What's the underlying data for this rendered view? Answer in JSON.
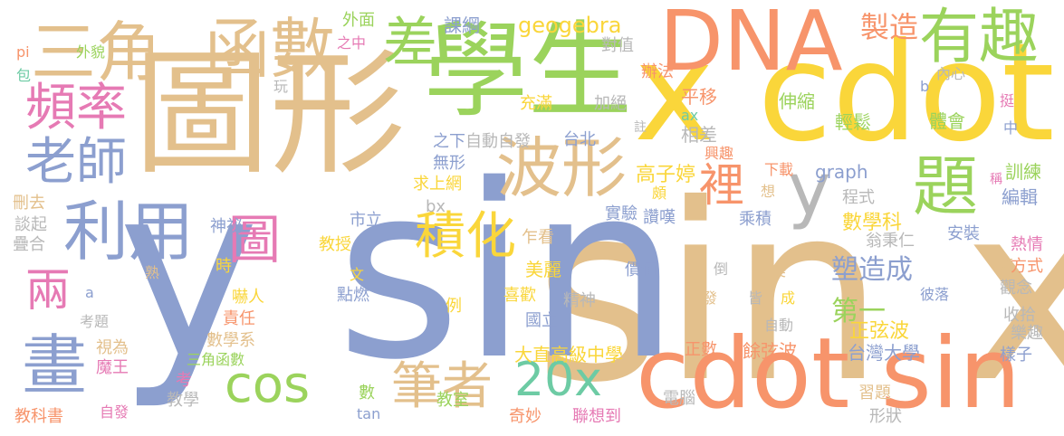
{
  "palette": {
    "tan": "#e3c08c",
    "orange": "#f7946b",
    "yellow": "#fad63a",
    "green": "#9bd35c",
    "blue": "#8c9fcf",
    "pink": "#e67ab4",
    "gray": "#b8b8b8",
    "teal": "#6dcba4"
  },
  "words": [
    {
      "text": "sin x"
    },
    {
      "text": "y sin"
    },
    {
      "text": "圖形"
    },
    {
      "text": "學生"
    },
    {
      "text": "x cdot"
    },
    {
      "text": "cdot sin"
    },
    {
      "text": "DNA"
    },
    {
      "text": "三角"
    },
    {
      "text": "函數"
    },
    {
      "text": "有趣"
    },
    {
      "text": "差"
    },
    {
      "text": "題"
    },
    {
      "text": "波形"
    },
    {
      "text": "頻率"
    },
    {
      "text": "老師"
    },
    {
      "text": "利用"
    },
    {
      "text": "畫"
    },
    {
      "text": "兩"
    },
    {
      "text": "圖"
    },
    {
      "text": "積化"
    },
    {
      "text": "cos"
    },
    {
      "text": "筆者"
    },
    {
      "text": "20x"
    },
    {
      "text": "y"
    },
    {
      "text": "裡"
    },
    {
      "text": "geogebra"
    },
    {
      "text": "製造"
    },
    {
      "text": "塑造成"
    },
    {
      "text": "第一"
    },
    {
      "text": "數學科"
    },
    {
      "text": "正弦波"
    },
    {
      "text": "台灣大學"
    },
    {
      "text": "大直高級中學"
    },
    {
      "text": "高子婷"
    },
    {
      "text": "餘弦波"
    },
    {
      "text": "美麗"
    },
    {
      "text": "教授"
    },
    {
      "text": "訓練"
    },
    {
      "text": "編輯"
    },
    {
      "text": "課綱"
    },
    {
      "text": "外面"
    },
    {
      "text": "之中"
    },
    {
      "text": "對值"
    },
    {
      "text": "辦法"
    },
    {
      "text": "平移"
    },
    {
      "text": "伸縮"
    },
    {
      "text": "輕鬆"
    },
    {
      "text": "體會"
    },
    {
      "text": "相差"
    },
    {
      "text": "加絕"
    },
    {
      "text": "充滿"
    },
    {
      "text": "自動自發"
    },
    {
      "text": "台北"
    },
    {
      "text": "之下"
    },
    {
      "text": "無形"
    },
    {
      "text": "求上網"
    },
    {
      "text": "刪去"
    },
    {
      "text": "談起"
    },
    {
      "text": "疊合"
    },
    {
      "text": "神祕"
    },
    {
      "text": "市立"
    },
    {
      "text": "bx"
    },
    {
      "text": "乍看"
    },
    {
      "text": "實驗"
    },
    {
      "text": "讚嘆"
    },
    {
      "text": "乘積"
    },
    {
      "text": "graph"
    },
    {
      "text": "下載"
    },
    {
      "text": "想"
    },
    {
      "text": "程式"
    },
    {
      "text": "翁秉仁"
    },
    {
      "text": "安裝"
    },
    {
      "text": "熱情"
    },
    {
      "text": "方式"
    },
    {
      "text": "觀念"
    },
    {
      "text": "收拾"
    },
    {
      "text": "樂趣"
    },
    {
      "text": "樣子"
    },
    {
      "text": "時"
    },
    {
      "text": "嚇人"
    },
    {
      "text": "責任"
    },
    {
      "text": "數學系"
    },
    {
      "text": "三角函數"
    },
    {
      "text": "視為"
    },
    {
      "text": "魔王"
    },
    {
      "text": "考"
    },
    {
      "text": "教學"
    },
    {
      "text": "教科書"
    },
    {
      "text": "自發"
    },
    {
      "text": "教室"
    },
    {
      "text": "數"
    },
    {
      "text": "tan"
    },
    {
      "text": "奇妙"
    },
    {
      "text": "聯想到"
    },
    {
      "text": "電腦"
    },
    {
      "text": "形狀"
    },
    {
      "text": "習題"
    },
    {
      "text": "國立"
    },
    {
      "text": "正數"
    },
    {
      "text": "價值"
    },
    {
      "text": "精神"
    },
    {
      "text": "喜歡"
    },
    {
      "text": "例"
    },
    {
      "text": "點燃"
    },
    {
      "text": "文"
    },
    {
      "text": "熟"
    },
    {
      "text": "a"
    },
    {
      "text": "考題"
    },
    {
      "text": "pi"
    },
    {
      "text": "包"
    },
    {
      "text": "外貌"
    },
    {
      "text": "玩"
    },
    {
      "text": "b"
    },
    {
      "text": "內心"
    },
    {
      "text": "挺"
    },
    {
      "text": "中"
    },
    {
      "text": "稱"
    },
    {
      "text": "先"
    },
    {
      "text": "註"
    },
    {
      "text": "ax"
    },
    {
      "text": "興趣"
    },
    {
      "text": "頗"
    },
    {
      "text": "倒"
    },
    {
      "text": "美"
    },
    {
      "text": "發"
    },
    {
      "text": "皆"
    },
    {
      "text": "成"
    },
    {
      "text": "自動"
    },
    {
      "text": "彼落"
    }
  ]
}
